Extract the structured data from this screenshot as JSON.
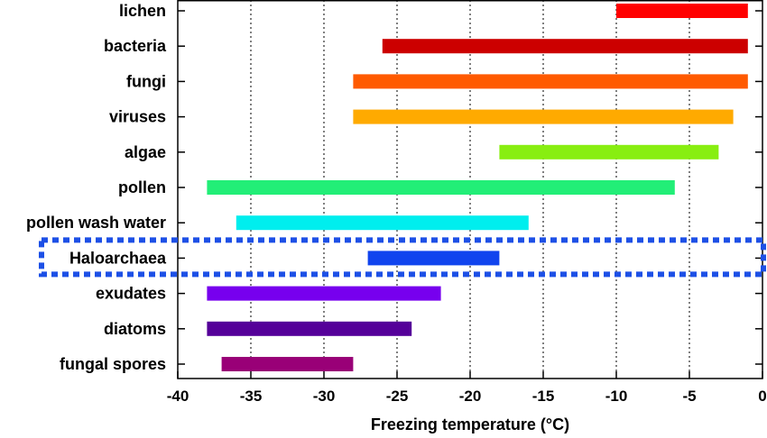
{
  "chart_data": {
    "type": "bar",
    "orientation": "horizontal-range",
    "xlabel": "Freezing temperature (°C)",
    "xlim": [
      -40,
      0
    ],
    "x_ticks": [
      -40,
      -35,
      -30,
      -25,
      -20,
      -15,
      -10,
      -5,
      0
    ],
    "grid": "vertical dotted",
    "series": [
      {
        "category": "lichen",
        "start": -10,
        "end": -1,
        "color": "#ff0000"
      },
      {
        "category": "bacteria",
        "start": -26,
        "end": -1,
        "color": "#cc0000"
      },
      {
        "category": "fungi",
        "start": -28,
        "end": -1,
        "color": "#ff5a00"
      },
      {
        "category": "viruses",
        "start": -28,
        "end": -2,
        "color": "#ffaa00"
      },
      {
        "category": "algae",
        "start": -18,
        "end": -3,
        "color": "#88ee11"
      },
      {
        "category": "pollen",
        "start": -38,
        "end": -6,
        "color": "#22ee77"
      },
      {
        "category": "pollen wash water",
        "start": -36,
        "end": -16,
        "color": "#00eeee"
      },
      {
        "category": "Haloarchaea",
        "start": -27,
        "end": -18,
        "color": "#1144ee"
      },
      {
        "category": "exudates",
        "start": -38,
        "end": -22,
        "color": "#7700ee"
      },
      {
        "category": "diatoms",
        "start": -38,
        "end": -24,
        "color": "#550099"
      },
      {
        "category": "fungal spores",
        "start": -37,
        "end": -28,
        "color": "#990077"
      }
    ],
    "highlight": {
      "category": "Haloarchaea",
      "style": "dotted box",
      "color": "#1d50e6"
    }
  }
}
